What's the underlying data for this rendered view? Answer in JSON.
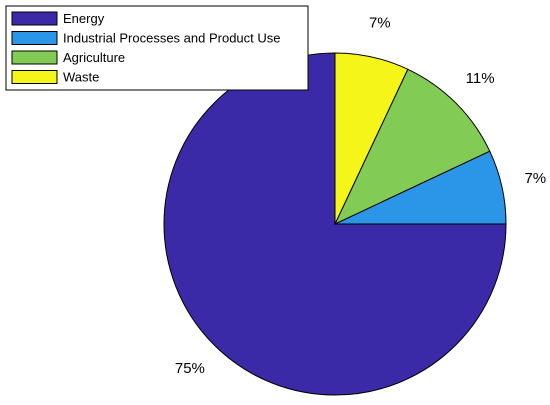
{
  "chart_data": {
    "type": "pie",
    "categories": [
      "Energy",
      "Industrial Processes and Product Use",
      "Agriculture",
      "Waste"
    ],
    "values": [
      75,
      7,
      11,
      7
    ],
    "labels": [
      "75%",
      "7%",
      "11%",
      "7%"
    ],
    "colors": [
      "#3a2aa8",
      "#2b96e8",
      "#82cc55",
      "#f5f51a"
    ],
    "legend_position": "top-left",
    "start_angle": "top",
    "direction": "counterclockwise"
  }
}
